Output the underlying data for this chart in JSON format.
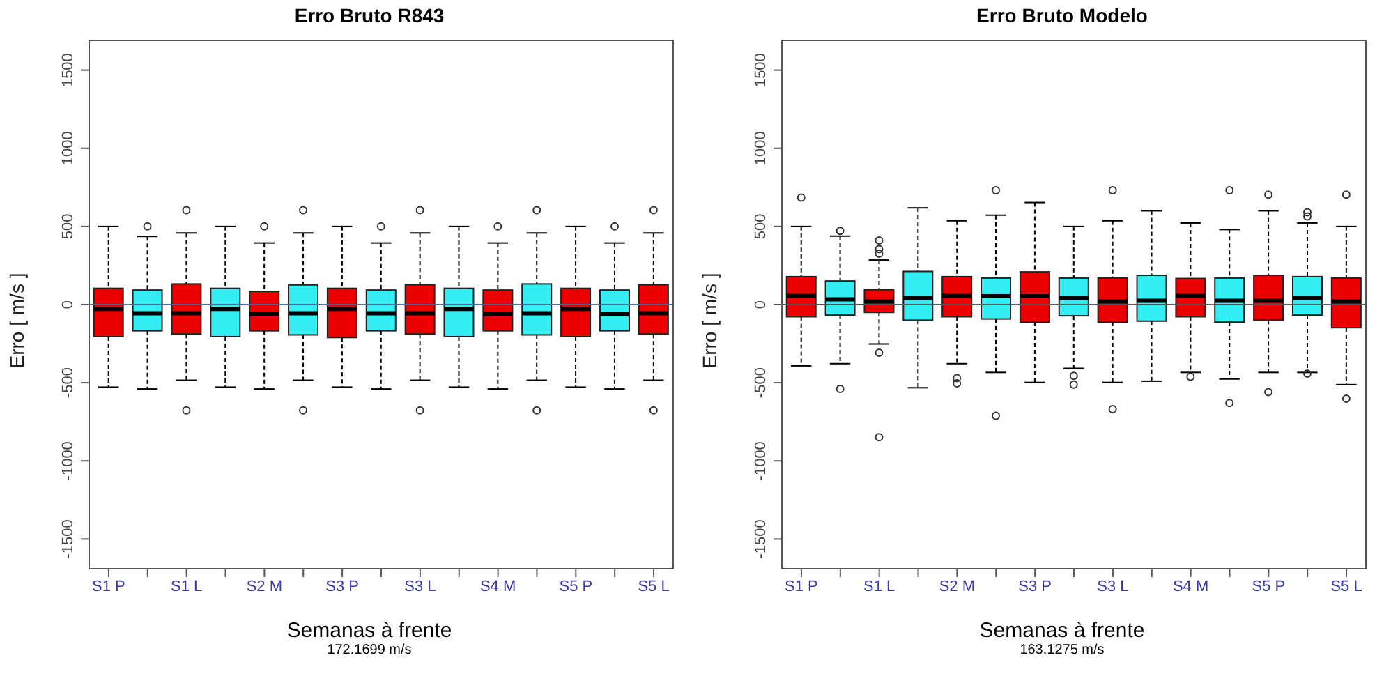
{
  "chart_data": [
    {
      "type": "box",
      "title": "Erro Bruto R843",
      "xlabel": "Semanas à frente",
      "ylabel": "Erro [ m/s ]",
      "annotations": [
        "172.1699 m/s"
      ],
      "categories": [
        "S1 P",
        null,
        "S1 L",
        null,
        "S2 M",
        null,
        "S3 P",
        null,
        "S3 L",
        null,
        "S4 M",
        null,
        "S5 P",
        null,
        "S5 L"
      ],
      "colors": [
        "#ee0000",
        "#33eef2",
        "#ee0000",
        "#33eef2",
        "#ee0000",
        "#33eef2",
        "#ee0000",
        "#33eef2",
        "#ee0000",
        "#33eef2",
        "#ee0000",
        "#33eef2",
        "#ee0000",
        "#33eef2",
        "#ee0000"
      ],
      "ylim": [
        -1690,
        1690
      ],
      "yticks": [
        -1500,
        -1000,
        -500,
        0,
        500,
        1000,
        1500
      ],
      "grid": false,
      "ref_lines": [
        {
          "axis": "y",
          "value": 0,
          "color": "#4a6a9a"
        }
      ],
      "boxes": [
        {
          "low": -528,
          "q1": -205,
          "median": -28,
          "q3": 104,
          "high": 500
        },
        {
          "low": -540,
          "q1": -168,
          "median": -56,
          "q3": 93,
          "high": 436,
          "outliers": [
            500
          ]
        },
        {
          "low": -484,
          "q1": -188,
          "median": -56,
          "q3": 132,
          "high": 458,
          "outliers": [
            604,
            -677
          ]
        },
        {
          "low": -528,
          "q1": -205,
          "median": -28,
          "q3": 104,
          "high": 500
        },
        {
          "low": -540,
          "q1": -168,
          "median": -62,
          "q3": 84,
          "high": 394,
          "outliers": [
            500
          ]
        },
        {
          "low": -484,
          "q1": -194,
          "median": -56,
          "q3": 126,
          "high": 458,
          "outliers": [
            604,
            -677
          ]
        },
        {
          "low": -528,
          "q1": -211,
          "median": -28,
          "q3": 104,
          "high": 500
        },
        {
          "low": -540,
          "q1": -168,
          "median": -56,
          "q3": 93,
          "high": 394,
          "outliers": [
            500
          ]
        },
        {
          "low": -484,
          "q1": -188,
          "median": -56,
          "q3": 126,
          "high": 458,
          "outliers": [
            604,
            -677
          ]
        },
        {
          "low": -528,
          "q1": -205,
          "median": -28,
          "q3": 104,
          "high": 500
        },
        {
          "low": -540,
          "q1": -168,
          "median": -62,
          "q3": 93,
          "high": 394,
          "outliers": [
            500
          ]
        },
        {
          "low": -484,
          "q1": -194,
          "median": -56,
          "q3": 132,
          "high": 458,
          "outliers": [
            604,
            -677
          ]
        },
        {
          "low": -528,
          "q1": -205,
          "median": -28,
          "q3": 104,
          "high": 500
        },
        {
          "low": -540,
          "q1": -168,
          "median": -62,
          "q3": 93,
          "high": 394,
          "outliers": [
            500
          ]
        },
        {
          "low": -484,
          "q1": -188,
          "median": -56,
          "q3": 126,
          "high": 458,
          "outliers": [
            604,
            -677
          ]
        }
      ]
    },
    {
      "type": "box",
      "title": "Erro Bruto Modelo",
      "xlabel": "Semanas à frente",
      "ylabel": "Erro [ m/s ]",
      "annotations": [
        "163.1275 m/s"
      ],
      "categories": [
        "S1 P",
        null,
        "S1 L",
        null,
        "S2 M",
        null,
        "S3 P",
        null,
        "S3 L",
        null,
        "S4 M",
        null,
        "S5 P",
        null,
        "S5 L"
      ],
      "colors": [
        "#ee0000",
        "#33eef2",
        "#ee0000",
        "#33eef2",
        "#ee0000",
        "#33eef2",
        "#ee0000",
        "#33eef2",
        "#ee0000",
        "#33eef2",
        "#ee0000",
        "#33eef2",
        "#ee0000",
        "#33eef2",
        "#ee0000"
      ],
      "ylim": [
        -1690,
        1690
      ],
      "yticks": [
        -1500,
        -1000,
        -500,
        0,
        500,
        1000,
        1500
      ],
      "grid": false,
      "ref_lines": [
        {
          "axis": "y",
          "value": 0,
          "color": "#555555"
        }
      ],
      "boxes": [
        {
          "low": -392,
          "q1": -78,
          "median": 56,
          "q3": 179,
          "high": 500,
          "outliers": [
            684
          ]
        },
        {
          "low": -378,
          "q1": -67,
          "median": 33,
          "q3": 151,
          "high": 438,
          "outliers": [
            472,
            -540
          ]
        },
        {
          "low": -252,
          "q1": -50,
          "median": 20,
          "q3": 95,
          "high": 285,
          "outliers": [
            410,
            354,
            326,
            -308,
            -848
          ]
        },
        {
          "low": -532,
          "q1": -100,
          "median": 42,
          "q3": 212,
          "high": 619
        },
        {
          "low": -378,
          "q1": -78,
          "median": 56,
          "q3": 179,
          "high": 536,
          "outliers": [
            -470,
            -504
          ]
        },
        {
          "low": -434,
          "q1": -92,
          "median": 53,
          "q3": 170,
          "high": 572,
          "outliers": [
            731,
            -711
          ]
        },
        {
          "low": -498,
          "q1": -112,
          "median": 53,
          "q3": 209,
          "high": 653
        },
        {
          "low": -408,
          "q1": -72,
          "median": 42,
          "q3": 170,
          "high": 500,
          "outliers": [
            -456,
            -512
          ]
        },
        {
          "low": -498,
          "q1": -112,
          "median": 20,
          "q3": 170,
          "high": 536,
          "outliers": [
            731,
            -669
          ]
        },
        {
          "low": -490,
          "q1": -106,
          "median": 25,
          "q3": 187,
          "high": 600
        },
        {
          "low": -434,
          "q1": -78,
          "median": 56,
          "q3": 167,
          "high": 522,
          "outliers": [
            -462
          ]
        },
        {
          "low": -476,
          "q1": -112,
          "median": 25,
          "q3": 170,
          "high": 480,
          "outliers": [
            731,
            -630
          ]
        },
        {
          "low": -434,
          "q1": -100,
          "median": 25,
          "q3": 187,
          "high": 600,
          "outliers": [
            703,
            -560
          ]
        },
        {
          "low": -434,
          "q1": -67,
          "median": 42,
          "q3": 179,
          "high": 522,
          "outliers": [
            591,
            564,
            -442
          ]
        },
        {
          "low": -512,
          "q1": -148,
          "median": 20,
          "q3": 170,
          "high": 500,
          "outliers": [
            703,
            -602
          ]
        }
      ]
    }
  ]
}
